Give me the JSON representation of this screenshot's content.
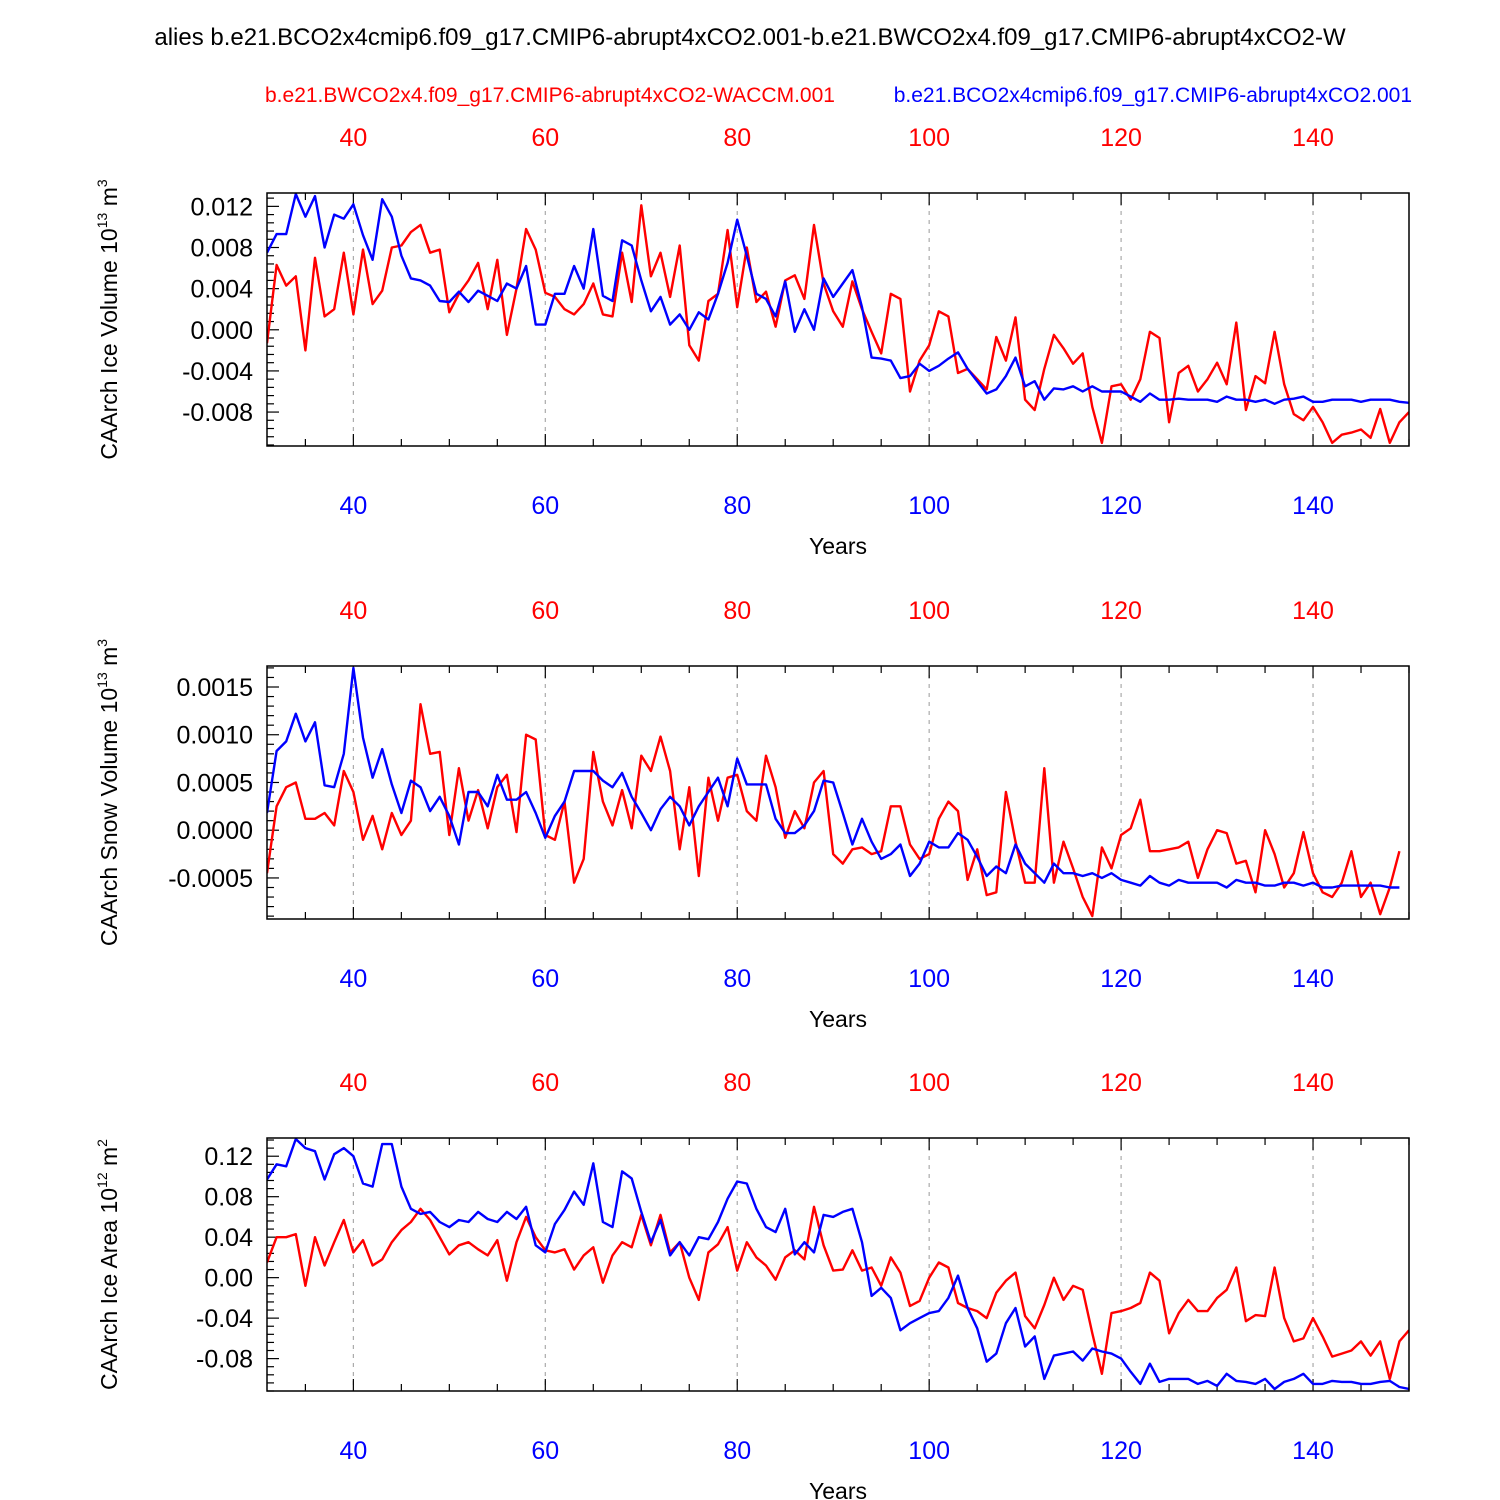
{
  "title": "alies b.e21.BCO2x4cmip6.f09_g17.CMIP6-abrupt4xCO2.001-b.e21.BWCO2x4.f09_g17.CMIP6-abrupt4xCO2-W",
  "legend": {
    "red_label": "b.e21.BWCO2x4.f09_g17.CMIP6-abrupt4xCO2-WACCM.001",
    "blue_label": "b.e21.BCO2x4cmip6.f09_g17.CMIP6-abrupt4xCO2.001"
  },
  "colors": {
    "red": "#ff0000",
    "blue": "#0000ff",
    "axis": "#000000",
    "grid": "#aaaaaa"
  },
  "chart_data": [
    {
      "type": "line",
      "ylabel": "CAArch Ice Volume",
      "ylabel_unit": "10",
      "ylabel_exp": "13",
      "ylabel_tail": " m",
      "ylabel_tail_exp": "3",
      "xlabel": "Years",
      "xlim": [
        31,
        150
      ],
      "ylim": [
        -0.0113,
        0.0133
      ],
      "xticks": [
        40,
        60,
        80,
        100,
        120,
        140
      ],
      "xtick_labels": [
        "40",
        "60",
        "80",
        "100",
        "120",
        "140"
      ],
      "yticks": [
        0.012,
        0.008,
        0.004,
        0.0,
        -0.004,
        -0.008
      ],
      "ytick_labels": [
        "0.012",
        "0.008",
        "0.004",
        "0.000",
        "-0.004",
        "-0.008"
      ],
      "x_start": 31,
      "series": [
        {
          "name": "red",
          "color": "#ff0000",
          "values": [
            -0.0013,
            0.0063,
            0.0043,
            0.0052,
            -0.002,
            0.007,
            0.0013,
            0.002,
            0.0075,
            0.0015,
            0.0078,
            0.0025,
            0.0038,
            0.008,
            0.0082,
            0.0095,
            0.0102,
            0.0075,
            0.0078,
            0.0017,
            0.0035,
            0.0048,
            0.0065,
            0.002,
            0.0068,
            -0.0005,
            0.004,
            0.0098,
            0.0078,
            0.0036,
            0.0032,
            0.002,
            0.0015,
            0.0025,
            0.0045,
            0.0015,
            0.0013,
            0.0075,
            0.0027,
            0.0121,
            0.0052,
            0.0075,
            0.0032,
            0.0082,
            -0.0015,
            -0.003,
            0.0028,
            0.0035,
            0.0097,
            0.0022,
            0.008,
            0.0027,
            0.0037,
            0.0003,
            0.0048,
            0.0053,
            0.003,
            0.0102,
            0.0045,
            0.0018,
            0.0003,
            0.0047,
            0.002,
            -0.0002,
            -0.0023,
            0.0035,
            0.003,
            -0.006,
            -0.003,
            -0.0015,
            0.0018,
            0.0013,
            -0.0042,
            -0.0038,
            -0.0048,
            -0.0058,
            -0.0007,
            -0.003,
            0.0012,
            -0.0068,
            -0.0078,
            -0.0038,
            -0.0005,
            -0.0018,
            -0.0033,
            -0.0023,
            -0.0075,
            -0.011,
            -0.0055,
            -0.0053,
            -0.0068,
            -0.0048,
            -0.0002,
            -0.0008,
            -0.009,
            -0.0042,
            -0.0035,
            -0.006,
            -0.0048,
            -0.0032,
            -0.0053,
            0.0007,
            -0.0078,
            -0.0045,
            -0.0052,
            -0.0002,
            -0.0053,
            -0.0082,
            -0.0088,
            -0.0075,
            -0.009,
            -0.011,
            -0.0102,
            -0.01,
            -0.0097,
            -0.0105,
            -0.0077,
            -0.011,
            -0.009,
            -0.008
          ]
        },
        {
          "name": "blue",
          "color": "#0000ff",
          "values": [
            0.0075,
            0.0093,
            0.0093,
            0.0132,
            0.011,
            0.013,
            0.008,
            0.0112,
            0.0108,
            0.0122,
            0.0092,
            0.0068,
            0.0127,
            0.011,
            0.0072,
            0.005,
            0.0048,
            0.0043,
            0.0028,
            0.0027,
            0.0037,
            0.0027,
            0.0038,
            0.0033,
            0.0028,
            0.0045,
            0.004,
            0.0062,
            0.0005,
            0.0005,
            0.0035,
            0.0035,
            0.0062,
            0.004,
            0.0098,
            0.0033,
            0.0028,
            0.0087,
            0.0082,
            0.0048,
            0.0018,
            0.0032,
            0.0005,
            0.0015,
            0.0,
            0.0017,
            0.001,
            0.0035,
            0.0065,
            0.0107,
            0.0072,
            0.0035,
            0.003,
            0.0013,
            0.0047,
            -0.0002,
            0.002,
            0.0,
            0.005,
            0.0032,
            0.0045,
            0.0058,
            0.0022,
            -0.0027,
            -0.0028,
            -0.003,
            -0.0047,
            -0.0045,
            -0.0033,
            -0.004,
            -0.0035,
            -0.0028,
            -0.0022,
            -0.0038,
            -0.005,
            -0.0062,
            -0.0058,
            -0.0045,
            -0.0027,
            -0.0055,
            -0.005,
            -0.0068,
            -0.0057,
            -0.0058,
            -0.0055,
            -0.006,
            -0.0055,
            -0.006,
            -0.006,
            -0.006,
            -0.0065,
            -0.007,
            -0.0062,
            -0.0068,
            -0.0068,
            -0.0067,
            -0.0068,
            -0.0068,
            -0.0068,
            -0.007,
            -0.0065,
            -0.0068,
            -0.0068,
            -0.007,
            -0.0068,
            -0.0072,
            -0.0068,
            -0.0067,
            -0.0065,
            -0.007,
            -0.007,
            -0.0068,
            -0.0068,
            -0.0068,
            -0.007,
            -0.0068,
            -0.0068,
            -0.0068,
            -0.007,
            -0.0071
          ]
        }
      ]
    },
    {
      "type": "line",
      "ylabel": "CAArch Snow Volume",
      "ylabel_unit": "10",
      "ylabel_exp": "13",
      "ylabel_tail": " m",
      "ylabel_tail_exp": "3",
      "xlabel": "Years",
      "xlim": [
        31,
        150
      ],
      "ylim": [
        -0.00093,
        0.00172
      ],
      "xticks": [
        40,
        60,
        80,
        100,
        120,
        140
      ],
      "xtick_labels": [
        "40",
        "60",
        "80",
        "100",
        "120",
        "140"
      ],
      "yticks": [
        0.0015,
        0.001,
        0.0005,
        0.0,
        -0.0005
      ],
      "ytick_labels": [
        "0.0015",
        "0.0010",
        "0.0005",
        "0.0000",
        "-0.0005"
      ],
      "x_start": 31,
      "series": [
        {
          "name": "red",
          "color": "#ff0000",
          "values": [
            -0.00045,
            0.00025,
            0.00045,
            0.0005,
            0.00012,
            0.00012,
            0.00018,
            5e-05,
            0.00062,
            0.0004,
            -0.0001,
            0.00015,
            -0.0002,
            0.00018,
            -5e-05,
            0.0001,
            0.00132,
            0.0008,
            0.00082,
            -5e-05,
            0.00065,
            0.0001,
            0.00042,
            2e-05,
            0.00045,
            0.00058,
            -2e-05,
            0.001,
            0.00095,
            -5e-05,
            -0.0001,
            0.0003,
            -0.00055,
            -0.0003,
            0.00082,
            0.0003,
            5e-05,
            0.00042,
            2e-05,
            0.00078,
            0.00062,
            0.00098,
            0.00062,
            -0.0002,
            0.00045,
            -0.00048,
            0.00055,
            0.0001,
            0.00055,
            0.00058,
            0.0002,
            0.0001,
            0.00078,
            0.00045,
            -8e-05,
            0.0002,
            2e-05,
            0.0005,
            0.00062,
            -0.00025,
            -0.00035,
            -0.0002,
            -0.00018,
            -0.00025,
            -0.00022,
            0.00025,
            0.00025,
            -0.00015,
            -0.0003,
            -0.00025,
            0.00012,
            0.0003,
            0.0002,
            -0.00052,
            -0.0002,
            -0.00068,
            -0.00065,
            0.0004,
            -0.00012,
            -0.00055,
            -0.00055,
            0.00065,
            -0.00055,
            -0.00012,
            -0.0004,
            -0.0007,
            -0.0009,
            -0.00018,
            -0.0004,
            -5e-05,
            2e-05,
            0.00032,
            -0.00022,
            -0.00022,
            -0.0002,
            -0.00018,
            -0.00012,
            -0.0005,
            -0.0002,
            0.0,
            -3e-05,
            -0.00035,
            -0.00032,
            -0.00065,
            0.0,
            -0.00025,
            -0.0006,
            -0.00045,
            -2e-05,
            -0.00045,
            -0.00065,
            -0.0007,
            -0.00055,
            -0.00022,
            -0.0007,
            -0.00055,
            -0.00088,
            -0.0006,
            -0.00022
          ]
        },
        {
          "name": "blue",
          "color": "#0000ff",
          "values": [
            0.00018,
            0.00083,
            0.00093,
            0.00122,
            0.00093,
            0.00113,
            0.00047,
            0.00045,
            0.0008,
            0.0017,
            0.00097,
            0.00055,
            0.00085,
            0.00048,
            0.00018,
            0.00052,
            0.00045,
            0.0002,
            0.00035,
            0.00015,
            -0.00015,
            0.0004,
            0.0004,
            0.00025,
            0.00058,
            0.00032,
            0.00032,
            0.0004,
            0.00018,
            -8e-05,
            0.00015,
            0.0003,
            0.00062,
            0.00062,
            0.00062,
            0.00052,
            0.00045,
            0.0006,
            0.00035,
            0.00018,
            0.0,
            0.00022,
            0.00035,
            0.00025,
            5e-05,
            0.00025,
            0.0004,
            0.00055,
            0.00025,
            0.00075,
            0.00048,
            0.00048,
            0.00048,
            0.00012,
            -3e-05,
            -3e-05,
            5e-05,
            0.0002,
            0.00052,
            0.0005,
            0.00018,
            -0.00015,
            0.00012,
            -0.00012,
            -0.0003,
            -0.00025,
            -0.00015,
            -0.00048,
            -0.00035,
            -0.00012,
            -0.00018,
            -0.00018,
            -3e-05,
            -0.0001,
            -0.00028,
            -0.00048,
            -0.00038,
            -0.00045,
            -0.00015,
            -0.00035,
            -0.00045,
            -0.00055,
            -0.00035,
            -0.00045,
            -0.00045,
            -0.00048,
            -0.00045,
            -0.0005,
            -0.00045,
            -0.00052,
            -0.00055,
            -0.00058,
            -0.00048,
            -0.00055,
            -0.00058,
            -0.00052,
            -0.00055,
            -0.00055,
            -0.00055,
            -0.00055,
            -0.0006,
            -0.00052,
            -0.00055,
            -0.00055,
            -0.00058,
            -0.00058,
            -0.00055,
            -0.00055,
            -0.00058,
            -0.00055,
            -0.0006,
            -0.0006,
            -0.00058,
            -0.00058,
            -0.00058,
            -0.00058,
            -0.00058,
            -0.0006,
            -0.0006
          ]
        }
      ]
    },
    {
      "type": "line",
      "ylabel": "CAArch Ice Area",
      "ylabel_unit": "10",
      "ylabel_exp": "12",
      "ylabel_tail": " m",
      "ylabel_tail_exp": "2",
      "xlabel": "Years",
      "xlim": [
        31,
        150
      ],
      "ylim": [
        -0.112,
        0.138
      ],
      "xticks": [
        40,
        60,
        80,
        100,
        120,
        140
      ],
      "xtick_labels": [
        "40",
        "60",
        "80",
        "100",
        "120",
        "140"
      ],
      "yticks": [
        0.12,
        0.08,
        0.04,
        0.0,
        -0.04,
        -0.08
      ],
      "ytick_labels": [
        "0.12",
        "0.08",
        "0.04",
        "0.00",
        "-0.04",
        "-0.08"
      ],
      "x_start": 31,
      "series": [
        {
          "name": "red",
          "color": "#ff0000",
          "values": [
            0.015,
            0.04,
            0.04,
            0.043,
            -0.008,
            0.04,
            0.012,
            0.035,
            0.057,
            0.025,
            0.037,
            0.012,
            0.018,
            0.035,
            0.047,
            0.055,
            0.068,
            0.057,
            0.04,
            0.023,
            0.032,
            0.035,
            0.028,
            0.022,
            0.037,
            -0.003,
            0.035,
            0.06,
            0.04,
            0.027,
            0.025,
            0.028,
            0.008,
            0.022,
            0.03,
            -0.005,
            0.022,
            0.035,
            0.03,
            0.062,
            0.032,
            0.062,
            0.025,
            0.035,
            0.0,
            -0.022,
            0.025,
            0.033,
            0.05,
            0.007,
            0.035,
            0.02,
            0.012,
            -0.002,
            0.02,
            0.027,
            0.018,
            0.07,
            0.032,
            0.007,
            0.008,
            0.027,
            0.007,
            0.01,
            -0.008,
            0.02,
            0.005,
            -0.028,
            -0.023,
            0.0,
            0.015,
            0.01,
            -0.025,
            -0.03,
            -0.033,
            -0.04,
            -0.015,
            -0.003,
            0.005,
            -0.038,
            -0.05,
            -0.027,
            0.0,
            -0.022,
            -0.008,
            -0.012,
            -0.055,
            -0.095,
            -0.035,
            -0.033,
            -0.03,
            -0.025,
            0.005,
            -0.003,
            -0.055,
            -0.035,
            -0.022,
            -0.033,
            -0.033,
            -0.02,
            -0.012,
            0.01,
            -0.043,
            -0.037,
            -0.038,
            0.01,
            -0.04,
            -0.063,
            -0.06,
            -0.04,
            -0.058,
            -0.078,
            -0.075,
            -0.072,
            -0.063,
            -0.077,
            -0.063,
            -0.1,
            -0.063,
            -0.052
          ]
        },
        {
          "name": "blue",
          "color": "#0000ff",
          "values": [
            0.097,
            0.112,
            0.11,
            0.137,
            0.128,
            0.125,
            0.097,
            0.122,
            0.128,
            0.12,
            0.093,
            0.09,
            0.132,
            0.132,
            0.09,
            0.068,
            0.063,
            0.065,
            0.055,
            0.05,
            0.057,
            0.055,
            0.065,
            0.058,
            0.055,
            0.065,
            0.058,
            0.07,
            0.032,
            0.025,
            0.053,
            0.067,
            0.085,
            0.072,
            0.113,
            0.055,
            0.05,
            0.105,
            0.098,
            0.065,
            0.035,
            0.057,
            0.022,
            0.035,
            0.022,
            0.04,
            0.038,
            0.055,
            0.078,
            0.095,
            0.093,
            0.068,
            0.05,
            0.045,
            0.068,
            0.023,
            0.035,
            0.025,
            0.062,
            0.06,
            0.065,
            0.068,
            0.035,
            -0.018,
            -0.01,
            -0.02,
            -0.052,
            -0.045,
            -0.04,
            -0.035,
            -0.033,
            -0.02,
            0.002,
            -0.03,
            -0.05,
            -0.083,
            -0.075,
            -0.045,
            -0.03,
            -0.068,
            -0.058,
            -0.1,
            -0.077,
            -0.075,
            -0.073,
            -0.082,
            -0.07,
            -0.073,
            -0.075,
            -0.08,
            -0.093,
            -0.105,
            -0.085,
            -0.103,
            -0.1,
            -0.1,
            -0.1,
            -0.105,
            -0.102,
            -0.107,
            -0.095,
            -0.102,
            -0.103,
            -0.105,
            -0.1,
            -0.11,
            -0.103,
            -0.1,
            -0.095,
            -0.105,
            -0.105,
            -0.102,
            -0.103,
            -0.103,
            -0.105,
            -0.105,
            -0.103,
            -0.102,
            -0.108,
            -0.11
          ]
        }
      ]
    }
  ]
}
